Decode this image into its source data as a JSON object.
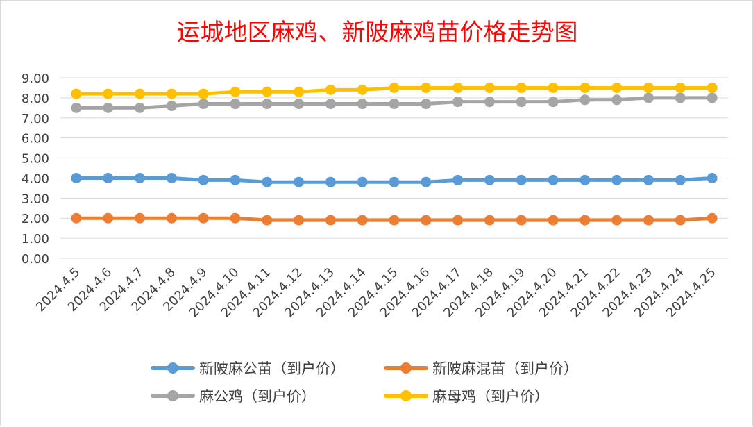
{
  "chart_data": {
    "type": "line",
    "title": "运城地区麻鸡、新陂麻鸡苗价格走势图",
    "xlabel": "",
    "ylabel": "",
    "categories": [
      "2024.4.5",
      "2024.4.6",
      "2024.4.7",
      "2024.4.8",
      "2024.4.9",
      "2024.4.10",
      "2024.4.11",
      "2024.4.12",
      "2024.4.13",
      "2024.4.14",
      "2024.4.15",
      "2024.4.16",
      "2024.4.17",
      "2024.4.18",
      "2024.4.19",
      "2024.4.20",
      "2024.4.21",
      "2024.4.22",
      "2024.4.23",
      "2024.4.24",
      "2024.4.25"
    ],
    "y_ticks": [
      "0.00",
      "1.00",
      "2.00",
      "3.00",
      "4.00",
      "5.00",
      "6.00",
      "7.00",
      "8.00",
      "9.00"
    ],
    "ylim": [
      0,
      9
    ],
    "grid": "horizontal",
    "legend_position": "bottom",
    "series": [
      {
        "name": "新陂麻公苗（到户价）",
        "color": "#5b9bd5",
        "values": [
          4.0,
          4.0,
          4.0,
          4.0,
          3.9,
          3.9,
          3.8,
          3.8,
          3.8,
          3.8,
          3.8,
          3.8,
          3.9,
          3.9,
          3.9,
          3.9,
          3.9,
          3.9,
          3.9,
          3.9,
          4.0
        ]
      },
      {
        "name": "新陂麻混苗（到户价）",
        "color": "#ed7d31",
        "values": [
          2.0,
          2.0,
          2.0,
          2.0,
          2.0,
          2.0,
          1.9,
          1.9,
          1.9,
          1.9,
          1.9,
          1.9,
          1.9,
          1.9,
          1.9,
          1.9,
          1.9,
          1.9,
          1.9,
          1.9,
          2.0
        ]
      },
      {
        "name": "麻公鸡（到户价）",
        "color": "#a5a5a5",
        "values": [
          7.5,
          7.5,
          7.5,
          7.6,
          7.7,
          7.7,
          7.7,
          7.7,
          7.7,
          7.7,
          7.7,
          7.7,
          7.8,
          7.8,
          7.8,
          7.8,
          7.9,
          7.9,
          8.0,
          8.0,
          8.0
        ]
      },
      {
        "name": "麻母鸡（到户价）",
        "color": "#ffc000",
        "values": [
          8.2,
          8.2,
          8.2,
          8.2,
          8.2,
          8.3,
          8.3,
          8.3,
          8.4,
          8.4,
          8.5,
          8.5,
          8.5,
          8.5,
          8.5,
          8.5,
          8.5,
          8.5,
          8.5,
          8.5,
          8.5
        ]
      }
    ]
  }
}
